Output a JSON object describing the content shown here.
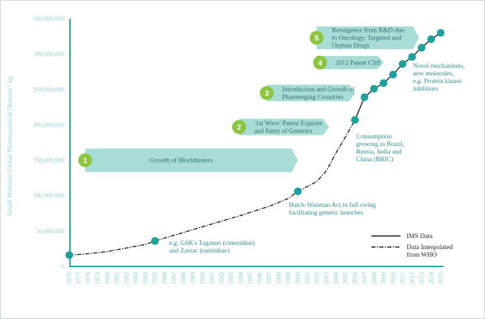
{
  "chart_data": {
    "type": "line",
    "ylabel": "Small Molecule Global Pharmaceutical Demand / kg",
    "ylim": [
      0,
      350000000
    ],
    "yticks": [
      "0",
      "50,000,000",
      "100,000,000",
      "150,000,000",
      "200,000,000",
      "250,000,000",
      "300,000,000",
      "350,000,000"
    ],
    "x": [
      "1976",
      "1977",
      "1978",
      "1979",
      "1980",
      "1981",
      "1982",
      "1983",
      "1984",
      "1985",
      "1986",
      "1987",
      "1988",
      "1989",
      "1990",
      "1991",
      "1992",
      "1993",
      "1994",
      "1995",
      "1996",
      "1997",
      "1998",
      "1999",
      "2000",
      "2001",
      "2002",
      "2003",
      "2004",
      "2005",
      "2006",
      "2007",
      "2008",
      "2009",
      "2010",
      "2011",
      "2012",
      "2013",
      "2014",
      "2015"
    ],
    "series": [
      {
        "name": "Data Interpolated from WHO",
        "style": "dash-dot",
        "points": [
          [
            1976,
            16000000
          ],
          [
            1978,
            18000000
          ],
          [
            1980,
            21000000
          ],
          [
            1982,
            26000000
          ],
          [
            1984,
            31000000
          ],
          [
            1985,
            36000000
          ],
          [
            1988,
            48000000
          ],
          [
            1991,
            60000000
          ],
          [
            1994,
            72000000
          ],
          [
            1997,
            85000000
          ],
          [
            1999,
            96000000
          ],
          [
            2000,
            106000000
          ],
          [
            2002,
            120000000
          ],
          [
            2003,
            135000000
          ],
          [
            2004,
            160000000
          ],
          [
            2005,
            183000000
          ],
          [
            2006,
            207000000
          ]
        ]
      },
      {
        "name": "IMS Data",
        "style": "solid",
        "points": [
          [
            2006,
            207000000
          ],
          [
            2007,
            239000000
          ],
          [
            2008,
            251000000
          ],
          [
            2009,
            259000000
          ],
          [
            2010,
            271000000
          ],
          [
            2011,
            286000000
          ],
          [
            2012,
            296000000
          ],
          [
            2013,
            309000000
          ],
          [
            2014,
            321000000
          ],
          [
            2015,
            330000000
          ]
        ]
      }
    ],
    "markers": [
      [
        1976,
        16000000
      ],
      [
        1985,
        36000000
      ],
      [
        2000,
        106000000
      ],
      [
        2006,
        207000000
      ],
      [
        2007,
        239000000
      ],
      [
        2008,
        251000000
      ],
      [
        2009,
        259000000
      ],
      [
        2010,
        271000000
      ],
      [
        2011,
        286000000
      ],
      [
        2012,
        296000000
      ],
      [
        2013,
        309000000
      ],
      [
        2014,
        321000000
      ],
      [
        2015,
        330000000
      ]
    ],
    "phases": [
      {
        "number": "1",
        "label": "Growth of Blockbusters",
        "start": 1977,
        "end": 1996,
        "y": 150000000
      },
      {
        "number": "2",
        "label": "'1st Wave' Patent Expiries and Entry of Generics",
        "start": 1999,
        "end": 2003,
        "y": 197000000
      },
      {
        "number": "3",
        "label": "Introduction and Growth of Pharmerging Countries",
        "start": 2001,
        "end": 2005,
        "y": 245000000
      },
      {
        "number": "4",
        "label": "2012 Patent Cliff",
        "start": 2003,
        "end": 2006,
        "y": 288000000
      },
      {
        "number": "5",
        "label": "Resurgence from R&D due to Oncology, Targeted and Orphan Drugs",
        "start": 2004,
        "end": 2008,
        "y": 323000000
      }
    ],
    "annotations": [
      {
        "id": "tagamet",
        "lines": [
          "e.g. GSK's Tagamet (cimetidine)",
          "and Zantac (ranitidine)"
        ]
      },
      {
        "id": "hatch",
        "lines": [
          "Hatch-Waxman Act in full swing",
          "facilitating generic launches"
        ]
      },
      {
        "id": "bric",
        "lines": [
          "Consumption",
          "growing in Brazil,",
          "Russia, India and",
          "China (BRIC)"
        ]
      },
      {
        "id": "novel",
        "lines": [
          "Novel mechanisms,",
          "new molecules,",
          "e.g. Protein kinase",
          "inhibitors"
        ]
      }
    ],
    "legend": {
      "position": "bottom-right",
      "items": [
        {
          "label": "IMS Data",
          "style": "solid"
        },
        {
          "label": "Data Interpolated from WHO",
          "style": "dash-dot"
        }
      ],
      "lines": [
        "IMS Data",
        "Data Interpolated",
        "from WHO"
      ]
    },
    "colors": {
      "axis": "#1fa39c",
      "marker": "#1ba39b",
      "phase_fill": "#a8dcd7",
      "badge": "#8cc63f",
      "line": "#111111",
      "tick_text": "#8fd1cf"
    }
  }
}
